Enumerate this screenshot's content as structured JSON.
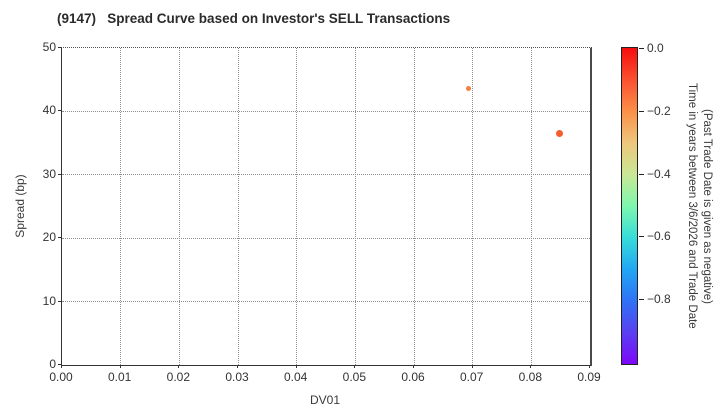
{
  "chart_data": {
    "type": "scatter",
    "title": "(9147)   Spread Curve based on Investor's SELL Transactions",
    "xlabel": "DV01",
    "ylabel": "Spread (bp)",
    "xlim": [
      0.0,
      0.09
    ],
    "ylim": [
      0,
      50
    ],
    "grid": true,
    "legend_position": "none",
    "xticks": [
      "0.00",
      "0.01",
      "0.02",
      "0.03",
      "0.04",
      "0.05",
      "0.06",
      "0.07",
      "0.08",
      "0.09"
    ],
    "yticks": [
      "0",
      "10",
      "20",
      "30",
      "40",
      "50"
    ],
    "points": [
      {
        "x": 0.0695,
        "y": 43.5,
        "color": "#f08142",
        "diameter": 5
      },
      {
        "x": 0.0849,
        "y": 36.4,
        "color": "#f85c2e",
        "diameter": 7
      }
    ],
    "colorbar": {
      "ticks": [
        "0.0",
        "−0.2",
        "−0.4",
        "−0.6",
        "−0.8"
      ],
      "tick_values": [
        0.0,
        -0.2,
        -0.4,
        -0.6,
        -0.8
      ],
      "label_line1": "Time in years between 3/6/2026 and Trade Date",
      "label_line2": "(Past Trade Date is given as negative)",
      "gradient_top_to_bottom": [
        "#f50d0d",
        "#fb5030",
        "#fb9049",
        "#eec67c",
        "#c9e795",
        "#7ef7ae",
        "#38dcd9",
        "#22a7f3",
        "#2f72f5",
        "#5940f0",
        "#7e06fa"
      ]
    }
  }
}
